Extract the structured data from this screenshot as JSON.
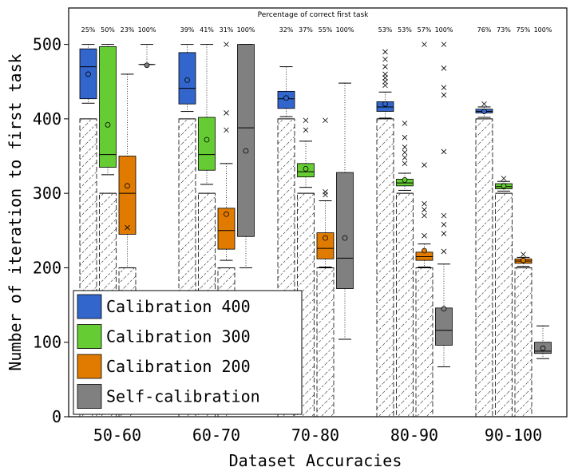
{
  "chart_data": {
    "type": "box",
    "title": "Percentage of correct first task",
    "xlabel": "Dataset Accuracies",
    "ylabel": "Number of iteration to first task",
    "ylim": [
      0,
      550
    ],
    "yticks": [
      0,
      100,
      200,
      300,
      400,
      500
    ],
    "categories": [
      "50-60",
      "60-70",
      "70-80",
      "80-90",
      "90-100"
    ],
    "legend": {
      "placement": "bottom-left"
    },
    "series": [
      {
        "name": "Calibration 400",
        "color": "#3366cc",
        "reference": 400,
        "percentages": [
          "25%",
          "39%",
          "32%",
          "53%",
          "76%"
        ],
        "boxes": [
          {
            "whisker_low": 421,
            "q1": 427,
            "median": 470,
            "q3": 494,
            "whisker_high": 500,
            "mean": 460,
            "outliers": []
          },
          {
            "whisker_low": 410,
            "q1": 420,
            "median": 441,
            "q3": 489,
            "whisker_high": 500,
            "mean": 452,
            "outliers": []
          },
          {
            "whisker_low": 403,
            "q1": 414,
            "median": 427,
            "q3": 437,
            "whisker_high": 470,
            "mean": 428,
            "outliers": []
          },
          {
            "whisker_low": 401,
            "q1": 410,
            "median": 416,
            "q3": 423,
            "whisker_high": 436,
            "mean": 420,
            "outliers": [
              445,
              450,
              455,
              460,
              470,
              480,
              490
            ]
          },
          {
            "whisker_low": 402,
            "q1": 408,
            "median": 410,
            "q3": 413,
            "whisker_high": 416,
            "mean": 410,
            "outliers": [
              420
            ]
          }
        ]
      },
      {
        "name": "Calibration 300",
        "color": "#66cc33",
        "reference": 300,
        "percentages": [
          "50%",
          "41%",
          "37%",
          "53%",
          "73%"
        ],
        "boxes": [
          {
            "whisker_low": 325,
            "q1": 335,
            "median": 352,
            "q3": 497,
            "whisker_high": 500,
            "mean": 392,
            "outliers": []
          },
          {
            "whisker_low": 312,
            "q1": 331,
            "median": 352,
            "q3": 402,
            "whisker_high": 500,
            "mean": 372,
            "outliers": []
          },
          {
            "whisker_low": 308,
            "q1": 322,
            "median": 329,
            "q3": 340,
            "whisker_high": 370,
            "mean": 333,
            "outliers": [
              385,
              398
            ]
          },
          {
            "whisker_low": 304,
            "q1": 310,
            "median": 314,
            "q3": 319,
            "whisker_high": 327,
            "mean": 318,
            "outliers": [
              340,
              348,
              355,
              362,
              375,
              394
            ]
          },
          {
            "whisker_low": 303,
            "q1": 306,
            "median": 309,
            "q3": 313,
            "whisker_high": 316,
            "mean": 310,
            "outliers": [
              320
            ]
          }
        ]
      },
      {
        "name": "Calibration 200",
        "color": "#e07b00",
        "reference": 200,
        "percentages": [
          "23%",
          "31%",
          "55%",
          "57%",
          "75%"
        ],
        "boxes": [
          {
            "whisker_low": 200,
            "q1": 245,
            "median": 300,
            "q3": 350,
            "whisker_high": 460,
            "mean": 310,
            "outliers": [
              254
            ]
          },
          {
            "whisker_low": 210,
            "q1": 225,
            "median": 250,
            "q3": 280,
            "whisker_high": 340,
            "mean": 272,
            "outliers": [
              385,
              408,
              500
            ]
          },
          {
            "whisker_low": 201,
            "q1": 212,
            "median": 226,
            "q3": 247,
            "whisker_high": 290,
            "mean": 240,
            "outliers": [
              298,
              302,
              398
            ]
          },
          {
            "whisker_low": 201,
            "q1": 210,
            "median": 215,
            "q3": 221,
            "whisker_high": 232,
            "mean": 223,
            "outliers": [
              243,
              270,
              278,
              286,
              338,
              500
            ]
          },
          {
            "whisker_low": 202,
            "q1": 206,
            "median": 209,
            "q3": 212,
            "whisker_high": 214,
            "mean": 210,
            "outliers": [
              218
            ]
          }
        ]
      },
      {
        "name": "Self-calibration",
        "color": "#808080",
        "reference": null,
        "percentages": [
          "100%",
          "100%",
          "100%",
          "100%",
          "100%"
        ],
        "boxes": [
          {
            "whisker_low": 473,
            "q1": 473,
            "median": 473,
            "q3": 473,
            "whisker_high": 500,
            "mean": 472,
            "outliers": []
          },
          {
            "whisker_low": 200,
            "q1": 242,
            "median": 388,
            "q3": 500,
            "whisker_high": 500,
            "mean": 357,
            "outliers": []
          },
          {
            "whisker_low": 104,
            "q1": 172,
            "median": 213,
            "q3": 328,
            "whisker_high": 448,
            "mean": 240,
            "outliers": []
          },
          {
            "whisker_low": 67,
            "q1": 96,
            "median": 116,
            "q3": 146,
            "whisker_high": 205,
            "mean": 145,
            "outliers": [
              222,
              246,
              258,
              270,
              356,
              432,
              442,
              468,
              500
            ]
          },
          {
            "whisker_low": 78,
            "q1": 85,
            "median": 88,
            "q3": 100,
            "whisker_high": 122,
            "mean": 92,
            "outliers": []
          }
        ]
      }
    ]
  }
}
